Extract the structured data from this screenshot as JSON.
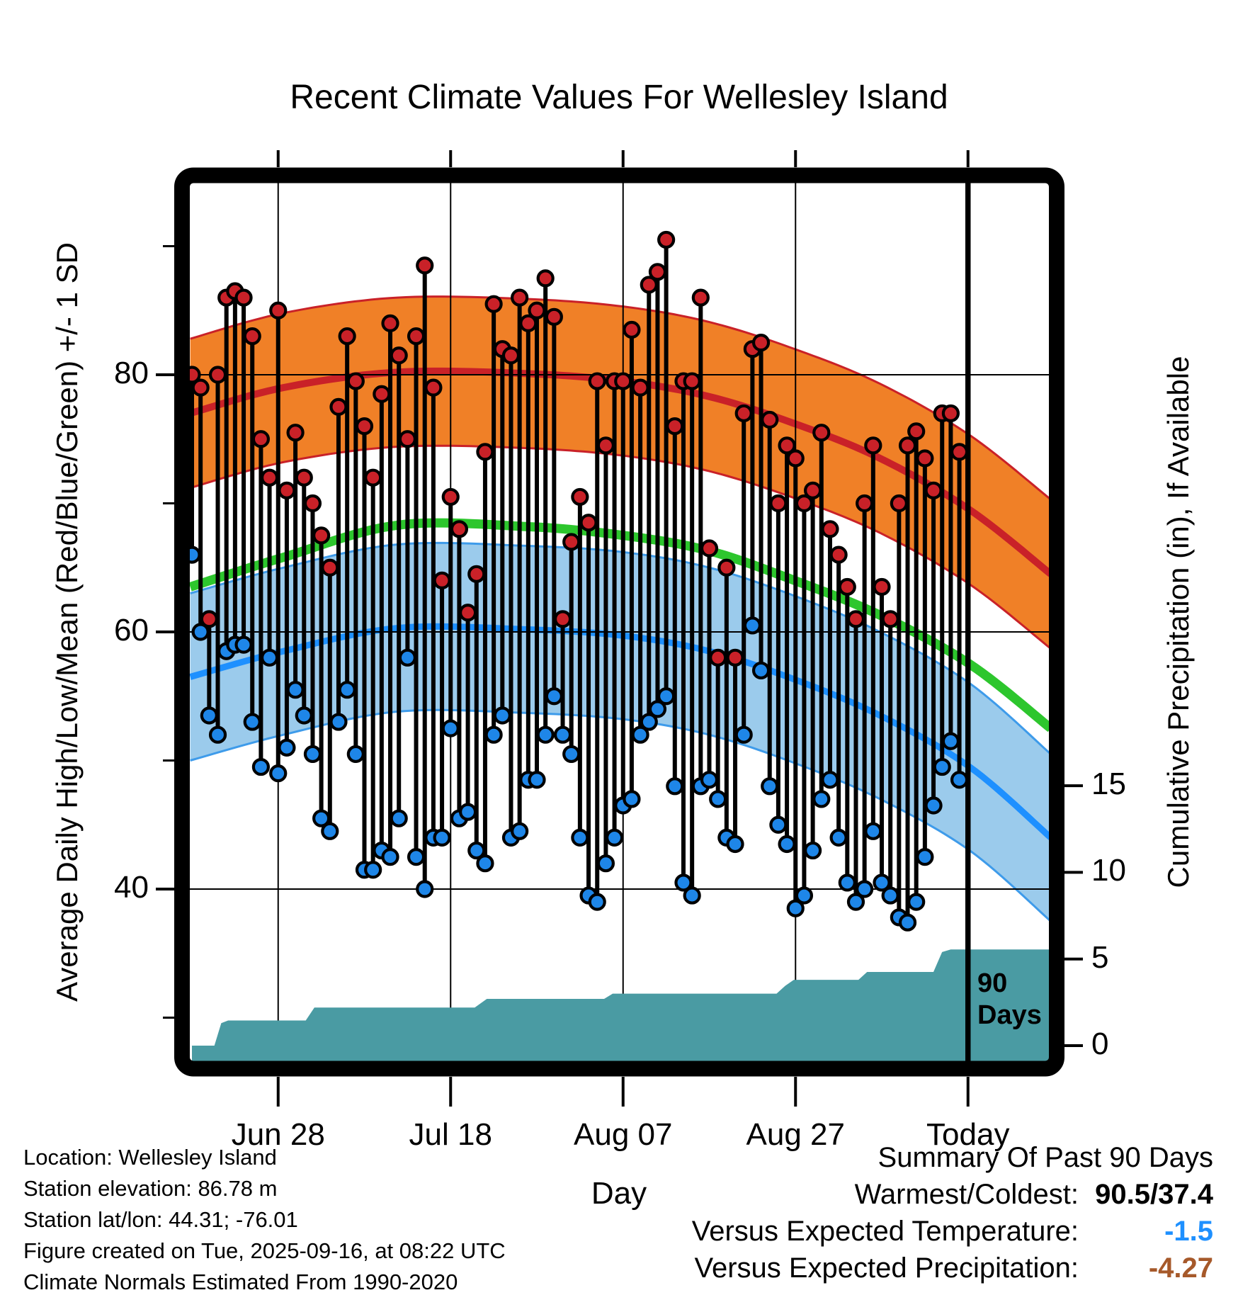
{
  "title": "Recent Climate Values For Wellesley Island",
  "axes": {
    "x": {
      "label": "Day",
      "ticks": [
        {
          "label": "Jun 28",
          "day": 10
        },
        {
          "label": "Jul 18",
          "day": 30
        },
        {
          "label": "Aug 07",
          "day": 50
        },
        {
          "label": "Aug 27",
          "day": 70
        },
        {
          "label": "Today",
          "day": 90
        }
      ]
    },
    "y_left": {
      "label": "Average Daily High/Low/Mean (Red/Blue/Green) +/- 1 SD",
      "ticks": [
        {
          "label": "80",
          "value": 80
        },
        {
          "label": "60",
          "value": 60
        },
        {
          "label": "40",
          "value": 40
        }
      ],
      "minor_ticks": [
        90,
        70,
        50,
        30
      ]
    },
    "y_right": {
      "label": "Cumulative Precipitation (in), If Available",
      "ticks": [
        {
          "label": "15",
          "value": 15
        },
        {
          "label": "10",
          "value": 10
        },
        {
          "label": "5",
          "value": 5
        },
        {
          "label": "0",
          "value": 0
        }
      ]
    }
  },
  "annotations": {
    "ninety_line1": "90",
    "ninety_line2": "Days"
  },
  "footer": {
    "lines": [
      "Location: Wellesley Island",
      "Station elevation: 86.78 m",
      "Station lat/lon: 44.31; -76.01",
      "Figure created on Tue, 2025-09-16, at 08:22 UTC",
      "Climate Normals Estimated From 1990-2020"
    ]
  },
  "summary": {
    "heading": "Summary Of Past 90 Days",
    "rows": [
      {
        "label": "Warmest/Coldest:",
        "value": "90.5/37.4",
        "color_key": "black_bold"
      },
      {
        "label": "Versus Expected Temperature:",
        "value": "-1.5",
        "color_key": "blue"
      },
      {
        "label": "Versus Expected Precipitation:",
        "value": "-4.27",
        "color_key": "brown"
      }
    ]
  },
  "colors": {
    "high_band_fill": "#F08027",
    "high_line": "#C92128",
    "mean_line": "#2DC62D",
    "low_band_fill": "#9BCBEC",
    "low_band_edge": "#3E9BEA",
    "low_line": "#1E90FF",
    "high_dot": "#C92128",
    "low_dot": "#1E86E8",
    "precip_fill": "#4A9BA3",
    "stem": "#000000",
    "grid": "#000000",
    "frame": "#000000",
    "summary_blue": "#1E90FF",
    "summary_brown": "#A6592A",
    "black_bold": "#000000"
  },
  "chart_data": {
    "type": "line",
    "subtype": "climate stem chart: daily high/low stems over normal bands plus cumulative precipitation area",
    "temperature_axis": {
      "unit": "F",
      "major_ticks": [
        40,
        60,
        80
      ],
      "minor_ticks": [
        30,
        50,
        70,
        90
      ]
    },
    "precip_axis": {
      "unit": "in",
      "ticks": [
        0,
        5,
        10,
        15
      ]
    },
    "days": [
      [
        "Jun 18",
        80,
        66
      ],
      [
        "Jun 19",
        79,
        60
      ],
      [
        "Jun 20",
        61,
        53.5
      ],
      [
        "Jun 21",
        80,
        52
      ],
      [
        "Jun 22",
        86,
        58.5
      ],
      [
        "Jun 23",
        86.5,
        59
      ],
      [
        "Jun 24",
        86,
        59
      ],
      [
        "Jun 25",
        83,
        53
      ],
      [
        "Jun 26",
        75,
        49.5
      ],
      [
        "Jun 27",
        72,
        58
      ],
      [
        "Jun 28",
        85,
        49
      ],
      [
        "Jun 29",
        71,
        51
      ],
      [
        "Jun 30",
        75.5,
        55.5
      ],
      [
        "Jul 01",
        72,
        53.5
      ],
      [
        "Jul 02",
        70,
        50.5
      ],
      [
        "Jul 03",
        67.5,
        45.5
      ],
      [
        "Jul 04",
        65,
        44.5
      ],
      [
        "Jul 05",
        77.5,
        53
      ],
      [
        "Jul 06",
        83,
        55.5
      ],
      [
        "Jul 07",
        79.5,
        50.5
      ],
      [
        "Jul 08",
        76,
        41.5
      ],
      [
        "Jul 09",
        72,
        41.5
      ],
      [
        "Jul 10",
        78.5,
        43
      ],
      [
        "Jul 11",
        84,
        42.5
      ],
      [
        "Jul 12",
        81.5,
        45.5
      ],
      [
        "Jul 13",
        75,
        58
      ],
      [
        "Jul 14",
        83,
        42.5
      ],
      [
        "Jul 15",
        88.5,
        40
      ],
      [
        "Jul 16",
        79,
        44
      ],
      [
        "Jul 17",
        64,
        44
      ],
      [
        "Jul 18",
        70.5,
        52.5
      ],
      [
        "Jul 19",
        68,
        45.5
      ],
      [
        "Jul 20",
        61.5,
        46
      ],
      [
        "Jul 21",
        64.5,
        43
      ],
      [
        "Jul 22",
        74,
        42
      ],
      [
        "Jul 23",
        85.5,
        52
      ],
      [
        "Jul 24",
        82,
        53.5
      ],
      [
        "Jul 25",
        81.5,
        44
      ],
      [
        "Jul 26",
        86,
        44.5
      ],
      [
        "Jul 27",
        84,
        48.5
      ],
      [
        "Jul 28",
        85,
        48.5
      ],
      [
        "Jul 29",
        87.5,
        52
      ],
      [
        "Jul 30",
        84.5,
        55
      ],
      [
        "Jul 31",
        61,
        52
      ],
      [
        "Aug 01",
        67,
        50.5
      ],
      [
        "Aug 02",
        70.5,
        44
      ],
      [
        "Aug 03",
        68.5,
        39.5
      ],
      [
        "Aug 04",
        79.5,
        39
      ],
      [
        "Aug 05",
        74.5,
        42
      ],
      [
        "Aug 06",
        79.5,
        44
      ],
      [
        "Aug 07",
        79.5,
        46.5
      ],
      [
        "Aug 08",
        83.5,
        47
      ],
      [
        "Aug 09",
        79,
        52
      ],
      [
        "Aug 10",
        87,
        53
      ],
      [
        "Aug 11",
        88,
        54
      ],
      [
        "Aug 12",
        90.5,
        55
      ],
      [
        "Aug 13",
        76,
        48
      ],
      [
        "Aug 14",
        79.5,
        40.5
      ],
      [
        "Aug 15",
        79.5,
        39.5
      ],
      [
        "Aug 16",
        86,
        48
      ],
      [
        "Aug 17",
        66.5,
        48.5
      ],
      [
        "Aug 18",
        58,
        47
      ],
      [
        "Aug 19",
        65,
        44
      ],
      [
        "Aug 20",
        58,
        43.5
      ],
      [
        "Aug 21",
        77,
        52
      ],
      [
        "Aug 22",
        82,
        60.5
      ],
      [
        "Aug 23",
        82.5,
        57
      ],
      [
        "Aug 24",
        76.5,
        48
      ],
      [
        "Aug 25",
        70,
        45
      ],
      [
        "Aug 26",
        74.5,
        43.5
      ],
      [
        "Aug 27",
        73.5,
        38.5
      ],
      [
        "Aug 28",
        70,
        39.5
      ],
      [
        "Aug 29",
        71,
        43
      ],
      [
        "Aug 30",
        75.5,
        47
      ],
      [
        "Aug 31",
        68,
        48.5
      ],
      [
        "Sep 01",
        66,
        44
      ],
      [
        "Sep 02",
        63.5,
        40.5
      ],
      [
        "Sep 03",
        61,
        39
      ],
      [
        "Sep 04",
        70,
        40
      ],
      [
        "Sep 05",
        74.5,
        44.5
      ],
      [
        "Sep 06",
        63.5,
        40.5
      ],
      [
        "Sep 07",
        61,
        39.5
      ],
      [
        "Sep 08",
        70,
        37.8
      ],
      [
        "Sep 09",
        74.5,
        37.4
      ],
      [
        "Sep 10",
        75.6,
        39
      ],
      [
        "Sep 11",
        73.5,
        42.5
      ],
      [
        "Sep 12",
        71,
        46.5
      ],
      [
        "Sep 13",
        77,
        49.5
      ],
      [
        "Sep 14",
        77,
        51.5
      ],
      [
        "Sep 15",
        74,
        48.5
      ]
    ],
    "normals": {
      "station_days": [
        -0.2,
        10.6,
        23.8,
        38.6,
        50.1,
        60,
        69.9,
        79.8,
        90.2,
        99.6
      ],
      "high_mean": [
        77.0,
        79.0,
        80.2,
        80.1,
        79.5,
        78.3,
        76.2,
        73.5,
        69.5,
        64.5
      ],
      "mean": [
        63.5,
        65.8,
        68.3,
        68.2,
        67.5,
        66.3,
        64.0,
        61.3,
        57.5,
        52.5
      ],
      "low_mean": [
        56.5,
        58.5,
        60.3,
        60.2,
        59.7,
        58.5,
        56.3,
        53.5,
        49.5,
        44.0
      ],
      "high_sd": 5.8,
      "low_sd": 6.5
    },
    "cumulative_precip_in": [
      [
        0,
        0
      ],
      [
        2.6,
        0
      ],
      [
        3.4,
        1.3
      ],
      [
        4.2,
        1.45
      ],
      [
        13.2,
        1.45
      ],
      [
        14.2,
        2.2
      ],
      [
        32.8,
        2.2
      ],
      [
        34.2,
        2.7
      ],
      [
        47.8,
        2.7
      ],
      [
        48.8,
        3.0
      ],
      [
        67.8,
        3.0
      ],
      [
        68.8,
        3.45
      ],
      [
        69.8,
        3.8
      ],
      [
        77.3,
        3.8
      ],
      [
        78.3,
        4.25
      ],
      [
        86,
        4.25
      ],
      [
        87,
        5.4
      ],
      [
        88,
        5.55
      ],
      [
        99.6,
        5.55
      ]
    ],
    "summary_stats": {
      "warmest": 90.5,
      "coldest": 37.4,
      "vs_expected_temp": -1.5,
      "vs_expected_precip": -4.27
    },
    "today_day_index": 90,
    "legend_position": "none",
    "grid": true
  }
}
